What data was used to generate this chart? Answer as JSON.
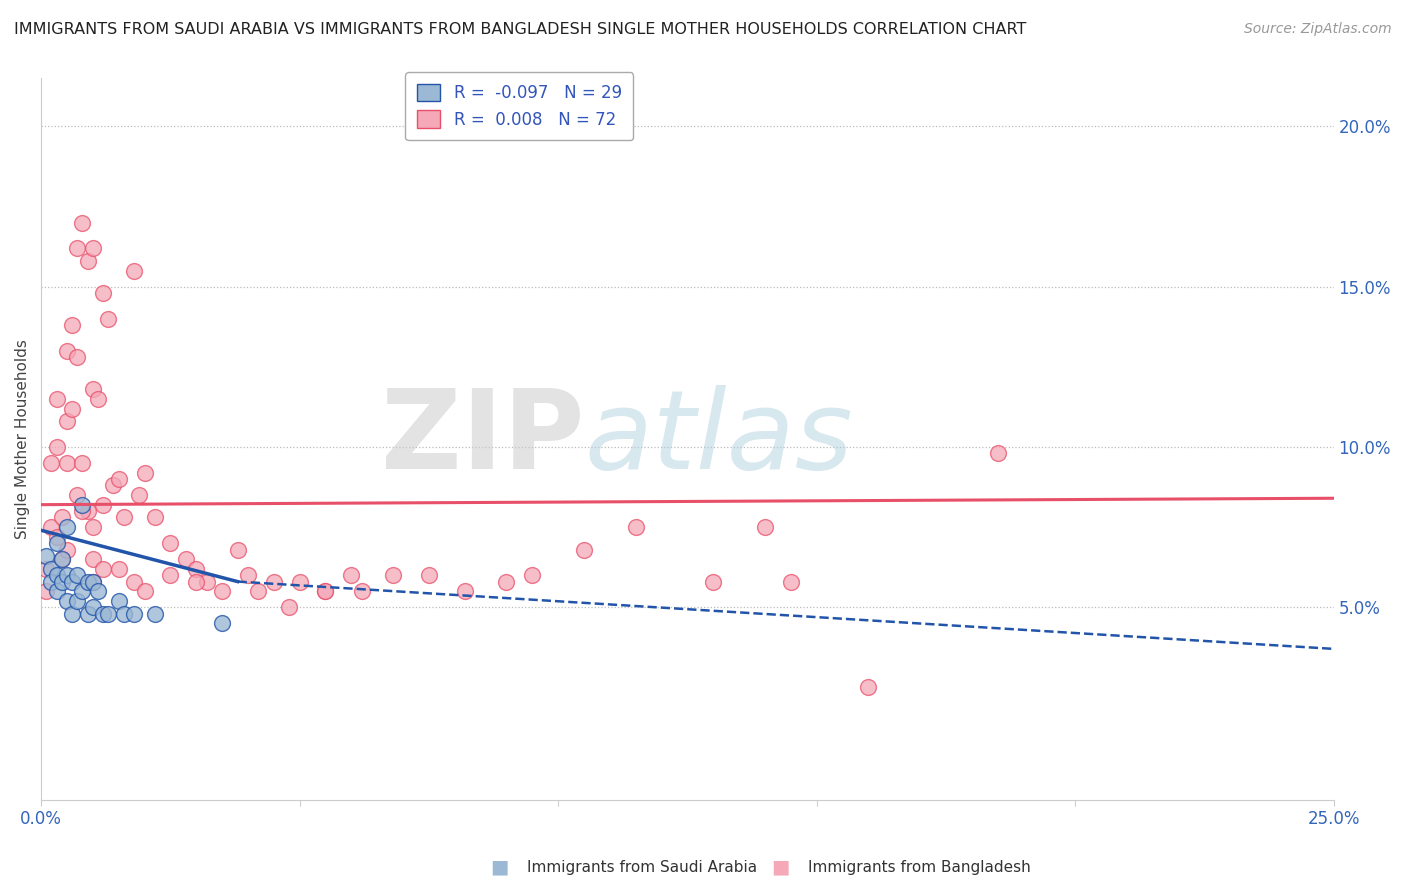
{
  "title": "IMMIGRANTS FROM SAUDI ARABIA VS IMMIGRANTS FROM BANGLADESH SINGLE MOTHER HOUSEHOLDS CORRELATION CHART",
  "source": "Source: ZipAtlas.com",
  "ylabel": "Single Mother Households",
  "xlabel_blue": "Immigrants from Saudi Arabia",
  "xlabel_pink": "Immigrants from Bangladesh",
  "R_blue": -0.097,
  "N_blue": 29,
  "R_pink": 0.008,
  "N_pink": 72,
  "xlim": [
    0.0,
    0.25
  ],
  "ylim": [
    -0.01,
    0.215
  ],
  "xticks": [
    0.0,
    0.05,
    0.1,
    0.15,
    0.2,
    0.25
  ],
  "xtick_labels": [
    "0.0%",
    "",
    "",
    "",
    "",
    "25.0%"
  ],
  "yticks": [
    0.05,
    0.1,
    0.15,
    0.2
  ],
  "ytick_labels": [
    "5.0%",
    "10.0%",
    "15.0%",
    "20.0%"
  ],
  "blue_color": "#9BB8D4",
  "pink_color": "#F4A8B8",
  "blue_line_color": "#2255AA",
  "pink_line_color": "#E8506A",
  "watermark_zip": "ZIP",
  "watermark_atlas": "atlas",
  "blue_x": [
    0.001,
    0.002,
    0.002,
    0.003,
    0.003,
    0.003,
    0.004,
    0.004,
    0.005,
    0.005,
    0.005,
    0.006,
    0.006,
    0.007,
    0.007,
    0.008,
    0.008,
    0.009,
    0.009,
    0.01,
    0.01,
    0.011,
    0.012,
    0.013,
    0.015,
    0.016,
    0.018,
    0.022,
    0.035
  ],
  "blue_y": [
    0.066,
    0.062,
    0.058,
    0.07,
    0.06,
    0.055,
    0.065,
    0.058,
    0.075,
    0.06,
    0.052,
    0.058,
    0.048,
    0.06,
    0.052,
    0.082,
    0.055,
    0.058,
    0.048,
    0.058,
    0.05,
    0.055,
    0.048,
    0.048,
    0.052,
    0.048,
    0.048,
    0.048,
    0.045
  ],
  "pink_x": [
    0.001,
    0.001,
    0.002,
    0.002,
    0.003,
    0.003,
    0.003,
    0.004,
    0.004,
    0.005,
    0.005,
    0.005,
    0.005,
    0.006,
    0.006,
    0.007,
    0.007,
    0.007,
    0.008,
    0.008,
    0.009,
    0.009,
    0.01,
    0.01,
    0.01,
    0.011,
    0.012,
    0.012,
    0.013,
    0.014,
    0.015,
    0.016,
    0.018,
    0.019,
    0.02,
    0.022,
    0.025,
    0.028,
    0.03,
    0.032,
    0.038,
    0.042,
    0.048,
    0.055,
    0.062,
    0.068,
    0.075,
    0.082,
    0.09,
    0.095,
    0.105,
    0.115,
    0.13,
    0.145,
    0.16,
    0.008,
    0.01,
    0.01,
    0.012,
    0.015,
    0.018,
    0.02,
    0.025,
    0.03,
    0.035,
    0.04,
    0.045,
    0.05,
    0.055,
    0.06,
    0.14,
    0.185
  ],
  "pink_y": [
    0.062,
    0.055,
    0.095,
    0.075,
    0.115,
    0.1,
    0.072,
    0.078,
    0.065,
    0.13,
    0.108,
    0.095,
    0.068,
    0.138,
    0.112,
    0.162,
    0.128,
    0.085,
    0.17,
    0.095,
    0.158,
    0.08,
    0.162,
    0.118,
    0.075,
    0.115,
    0.148,
    0.082,
    0.14,
    0.088,
    0.09,
    0.078,
    0.155,
    0.085,
    0.092,
    0.078,
    0.07,
    0.065,
    0.062,
    0.058,
    0.068,
    0.055,
    0.05,
    0.055,
    0.055,
    0.06,
    0.06,
    0.055,
    0.058,
    0.06,
    0.068,
    0.075,
    0.058,
    0.058,
    0.025,
    0.08,
    0.065,
    0.058,
    0.062,
    0.062,
    0.058,
    0.055,
    0.06,
    0.058,
    0.055,
    0.06,
    0.058,
    0.058,
    0.055,
    0.06,
    0.075,
    0.098
  ],
  "blue_trend_start_x": 0.0,
  "blue_trend_start_y": 0.074,
  "blue_trend_solid_end_x": 0.038,
  "blue_trend_solid_end_y": 0.058,
  "blue_trend_dash_end_x": 0.25,
  "blue_trend_dash_end_y": 0.037,
  "pink_trend_start_x": 0.0,
  "pink_trend_start_y": 0.082,
  "pink_trend_end_x": 0.25,
  "pink_trend_end_y": 0.084
}
